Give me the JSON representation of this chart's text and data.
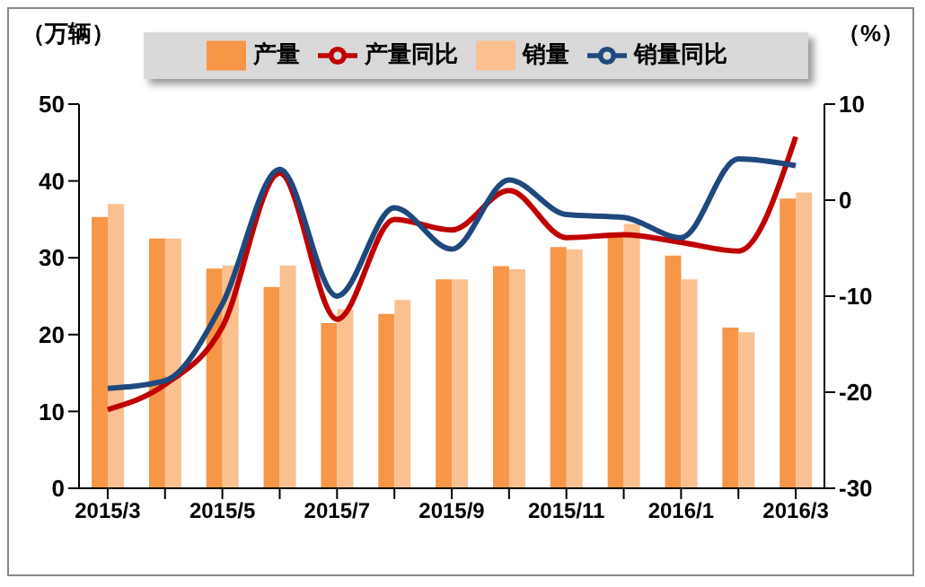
{
  "chart_data": {
    "type": "bar",
    "ylabel": "（万辆）",
    "y2label": "（%）",
    "categories": [
      "2015/3",
      null,
      "2015/5",
      null,
      "2015/7",
      null,
      "2015/9",
      null,
      "2015/11",
      null,
      "2016/1",
      null,
      "2016/3"
    ],
    "series": [
      {
        "name": "产量",
        "color": "#f79646",
        "values": [
          35.3,
          32.5,
          28.6,
          26.2,
          21.5,
          22.7,
          27.2,
          28.9,
          31.4,
          33.2,
          30.3,
          20.9,
          37.7
        ]
      },
      {
        "name": "销量",
        "color": "#fac090",
        "values": [
          37.0,
          32.5,
          29.0,
          29.0,
          23.3,
          24.5,
          27.2,
          28.5,
          31.1,
          34.4,
          27.2,
          20.3,
          38.5
        ]
      },
      {
        "name": "产量同比",
        "type": "line",
        "axis": "y2",
        "color": "#c00000",
        "values": [
          -21.8,
          -19.2,
          -13.2,
          2.8,
          -12.4,
          -2,
          -3.1,
          1,
          -3.9,
          -3.6,
          -4.4,
          -5.3,
          6.6
        ]
      },
      {
        "name": "销量同比",
        "type": "line",
        "axis": "y2",
        "color": "#1f497d",
        "values": [
          -19.6,
          -18.8,
          -10.8,
          3.2,
          -10,
          -0.8,
          -5.1,
          2.1,
          -1.5,
          -1.8,
          -3.9,
          4.3,
          3.6
        ]
      }
    ],
    "ylim": [
      0,
      50
    ],
    "yticks": [
      0,
      10,
      20,
      30,
      40,
      50
    ],
    "y2lim": [
      -30,
      10
    ],
    "y2ticks": [
      -30,
      -20,
      -10,
      0,
      10
    ],
    "grid": false,
    "legend": "top",
    "marker": "none"
  }
}
